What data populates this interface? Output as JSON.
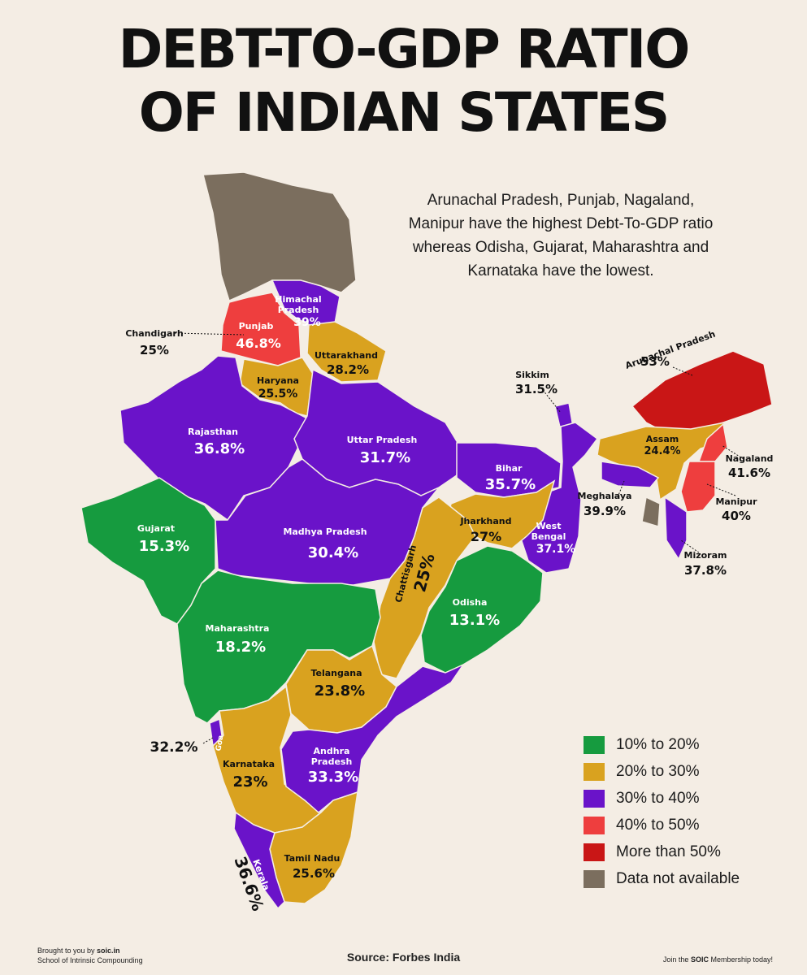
{
  "title_line1": "DEBT-TO-GDP RATIO",
  "title_line2": "OF INDIAN STATES",
  "note": "Arunachal Pradesh, Punjab, Nagaland, Manipur have the highest Debt-To-GDP ratio whereas Odisha, Gujarat, Maharashtra and Karnataka have the lowest.",
  "colors": {
    "band_10_20": "#169b3f",
    "band_20_30": "#d9a21f",
    "band_30_40": "#6a13c9",
    "band_40_50": "#ee3e3e",
    "band_50_plus": "#c91616",
    "na": "#7b6e5e"
  },
  "states": [
    {
      "name": "Himachal\nPradesh",
      "value": "39%",
      "band": "band_30_40"
    },
    {
      "name": "Punjab",
      "value": "46.8%",
      "band": "band_40_50"
    },
    {
      "name": "Chandigarh",
      "value": "25%",
      "band": "band_20_30"
    },
    {
      "name": "Uttarakhand",
      "value": "28.2%",
      "band": "band_20_30"
    },
    {
      "name": "Haryana",
      "value": "25.5%",
      "band": "band_20_30"
    },
    {
      "name": "Rajasthan",
      "value": "36.8%",
      "band": "band_30_40"
    },
    {
      "name": "Uttar Pradesh",
      "value": "31.7%",
      "band": "band_30_40"
    },
    {
      "name": "Bihar",
      "value": "35.7%",
      "band": "band_30_40"
    },
    {
      "name": "Sikkim",
      "value": "31.5%",
      "band": "band_30_40"
    },
    {
      "name": "Arunachal Pradesh",
      "value": "53%",
      "band": "band_50_plus"
    },
    {
      "name": "Assam",
      "value": "24.4%",
      "band": "band_20_30"
    },
    {
      "name": "Nagaland",
      "value": "41.6%",
      "band": "band_40_50"
    },
    {
      "name": "Meghalaya",
      "value": "39.9%",
      "band": "band_30_40"
    },
    {
      "name": "Manipur",
      "value": "40%",
      "band": "band_40_50"
    },
    {
      "name": "Mizoram",
      "value": "37.8%",
      "band": "band_30_40"
    },
    {
      "name": "Gujarat",
      "value": "15.3%",
      "band": "band_10_20"
    },
    {
      "name": "Madhya Pradesh",
      "value": "30.4%",
      "band": "band_30_40"
    },
    {
      "name": "Jharkhand",
      "value": "27%",
      "band": "band_20_30"
    },
    {
      "name": "West\nBengal",
      "value": "37.1%",
      "band": "band_30_40"
    },
    {
      "name": "Chattisgarh",
      "value": "25%",
      "band": "band_20_30"
    },
    {
      "name": "Odisha",
      "value": "13.1%",
      "band": "band_10_20"
    },
    {
      "name": "Maharashtra",
      "value": "18.2%",
      "band": "band_10_20"
    },
    {
      "name": "Telangana",
      "value": "23.8%",
      "band": "band_20_30"
    },
    {
      "name": "Goa",
      "value": "32.2%",
      "band": "band_30_40"
    },
    {
      "name": "Karnataka",
      "value": "23%",
      "band": "band_20_30"
    },
    {
      "name": "Andhra\nPradesh",
      "value": "33.3%",
      "band": "band_30_40"
    },
    {
      "name": "Tamil Nadu",
      "value": "25.6%",
      "band": "band_20_30"
    },
    {
      "name": "Kerala",
      "value": "36.6%",
      "band": "band_30_40"
    }
  ],
  "legend": [
    {
      "label": "10% to 20%",
      "band": "band_10_20"
    },
    {
      "label": "20% to 30%",
      "band": "band_20_30"
    },
    {
      "label": "30% to 40%",
      "band": "band_30_40"
    },
    {
      "label": "40% to 50%",
      "band": "band_40_50"
    },
    {
      "label": "More than 50%",
      "band": "band_50_plus"
    },
    {
      "label": "Data not available",
      "band": "na"
    }
  ],
  "footer": {
    "brought_by_prefix": "Brought to you by ",
    "brought_by_site": "soic.in",
    "org": "School of Intrinsic Compounding",
    "source": "Source: Forbes India",
    "cta_prefix": "Join the ",
    "cta_brand": "SOIC",
    "cta_suffix": " Membership today!"
  }
}
